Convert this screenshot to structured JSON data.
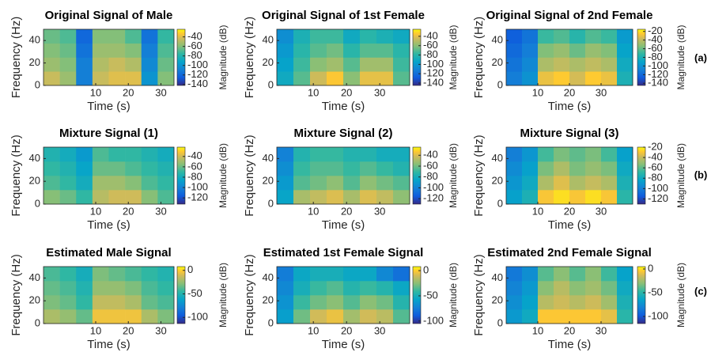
{
  "panel_labels": [
    "(a)",
    "(b)",
    "(c)"
  ],
  "chart_data": [
    {
      "type": "heatmap",
      "title": "Original Signal of Male",
      "xlabel": "Time (s)",
      "ylabel": "Frequency (Hz)",
      "colorbar_label": "Magnitude (dB)",
      "colormap": "parula",
      "xlim": [
        -6,
        34
      ],
      "xticks": [
        10,
        20,
        30
      ],
      "ylim": [
        0,
        50
      ],
      "yticks": [
        0,
        20,
        40
      ],
      "zlim": [
        -142,
        -24
      ],
      "zticks": [
        -40,
        -60,
        -80,
        -100,
        -120,
        -140
      ],
      "xbins": [
        -6,
        -1,
        4,
        9,
        14,
        19,
        24,
        29,
        34
      ],
      "ybins": [
        0,
        12.5,
        25,
        37.5,
        50
      ],
      "z": [
        [
          -45,
          -55,
          -110,
          -45,
          -40,
          -40,
          -100,
          -60
        ],
        [
          -55,
          -60,
          -110,
          -50,
          -45,
          -50,
          -105,
          -65
        ],
        [
          -60,
          -65,
          -115,
          -55,
          -55,
          -60,
          -110,
          -70
        ],
        [
          -65,
          -70,
          -120,
          -60,
          -60,
          -70,
          -115,
          -75
        ]
      ]
    },
    {
      "type": "heatmap",
      "title": "Original Signal of 1st Female",
      "xlabel": "Time (s)",
      "ylabel": "Frequency (Hz)",
      "colorbar_label": "Magnitude (dB)",
      "colormap": "parula",
      "xlim": [
        -1,
        39
      ],
      "xticks": [
        10,
        20,
        30
      ],
      "ylim": [
        0,
        50
      ],
      "yticks": [
        0,
        20,
        40
      ],
      "zlim": [
        -145,
        -25
      ],
      "zticks": [
        -40,
        -60,
        -80,
        -100,
        -120,
        -140
      ],
      "xbins": [
        -1,
        4,
        9,
        14,
        19,
        24,
        29,
        34,
        39
      ],
      "ybins": [
        0,
        12.5,
        25,
        37.5,
        50
      ],
      "z": [
        [
          -90,
          -70,
          -45,
          -35,
          -60,
          -40,
          -40,
          -70
        ],
        [
          -95,
          -75,
          -60,
          -55,
          -70,
          -55,
          -55,
          -75
        ],
        [
          -100,
          -80,
          -70,
          -65,
          -80,
          -70,
          -70,
          -80
        ],
        [
          -105,
          -85,
          -75,
          -75,
          -90,
          -80,
          -85,
          -90
        ]
      ]
    },
    {
      "type": "heatmap",
      "title": "Original Signal of 2nd Female",
      "xlabel": "Time (s)",
      "ylabel": "Frequency (Hz)",
      "colorbar_label": "Magnitude (dB)",
      "colormap": "parula",
      "xlim": [
        0,
        40
      ],
      "xticks": [
        10,
        20,
        30
      ],
      "ylim": [
        0,
        50
      ],
      "yticks": [
        0,
        20,
        40
      ],
      "zlim": [
        -145,
        -15
      ],
      "zticks": [
        -20,
        -40,
        -60,
        -80,
        -100,
        -120,
        -140
      ],
      "xbins": [
        0,
        5,
        10,
        15,
        20,
        25,
        30,
        35,
        40
      ],
      "ybins": [
        0,
        12.5,
        25,
        37.5,
        50
      ],
      "z": [
        [
          -110,
          -100,
          -30,
          -25,
          -35,
          -25,
          -30,
          -80
        ],
        [
          -115,
          -105,
          -45,
          -40,
          -45,
          -40,
          -45,
          -85
        ],
        [
          -120,
          -110,
          -55,
          -50,
          -60,
          -50,
          -55,
          -90
        ],
        [
          -125,
          -115,
          -70,
          -65,
          -75,
          -65,
          -70,
          -95
        ]
      ]
    },
    {
      "type": "heatmap",
      "title": "Mixture Signal (1)",
      "xlabel": "Time (s)",
      "ylabel": "Frequency (Hz)",
      "colorbar_label": "Magnitude (dB)",
      "colormap": "parula",
      "xlim": [
        -6,
        34
      ],
      "xticks": [
        10,
        20,
        30
      ],
      "ylim": [
        0,
        50
      ],
      "yticks": [
        0,
        20,
        40
      ],
      "zlim": [
        -132,
        -22
      ],
      "zticks": [
        -40,
        -60,
        -80,
        -100,
        -120
      ],
      "xbins": [
        -6,
        -1,
        4,
        9,
        14,
        19,
        24,
        29,
        34
      ],
      "ybins": [
        0,
        12.5,
        25,
        37.5,
        50
      ],
      "z": [
        [
          -55,
          -60,
          -70,
          -45,
          -40,
          -40,
          -55,
          -65
        ],
        [
          -65,
          -70,
          -80,
          -50,
          -50,
          -55,
          -65,
          -70
        ],
        [
          -70,
          -75,
          -85,
          -60,
          -60,
          -65,
          -70,
          -75
        ],
        [
          -75,
          -80,
          -90,
          -65,
          -70,
          -70,
          -75,
          -80
        ]
      ]
    },
    {
      "type": "heatmap",
      "title": "Mixture Signal (2)",
      "xlabel": "Time (s)",
      "ylabel": "Frequency (Hz)",
      "colorbar_label": "Magnitude (dB)",
      "colormap": "parula",
      "xlim": [
        -1,
        39
      ],
      "xticks": [
        10,
        20,
        30
      ],
      "ylim": [
        0,
        50
      ],
      "yticks": [
        0,
        20,
        40
      ],
      "zlim": [
        -130,
        -25
      ],
      "zticks": [
        -40,
        -60,
        -80,
        -100,
        -120
      ],
      "xbins": [
        -1,
        4,
        9,
        14,
        19,
        24,
        29,
        34,
        39
      ],
      "ybins": [
        0,
        12.5,
        25,
        37.5,
        50
      ],
      "z": [
        [
          -85,
          -50,
          -45,
          -40,
          -50,
          -40,
          -45,
          -55
        ],
        [
          -90,
          -65,
          -60,
          -55,
          -65,
          -55,
          -60,
          -65
        ],
        [
          -95,
          -70,
          -65,
          -65,
          -70,
          -65,
          -70,
          -75
        ],
        [
          -100,
          -75,
          -70,
          -70,
          -75,
          -75,
          -80,
          -80
        ]
      ]
    },
    {
      "type": "heatmap",
      "title": "Mixture Signal (3)",
      "xlabel": "Time (s)",
      "ylabel": "Frequency (Hz)",
      "colorbar_label": "Magnitude (dB)",
      "colormap": "parula",
      "xlim": [
        0,
        40
      ],
      "xticks": [
        10,
        20,
        30
      ],
      "ylim": [
        0,
        50
      ],
      "yticks": [
        0,
        20,
        40
      ],
      "zlim": [
        -130,
        -20
      ],
      "zticks": [
        -20,
        -40,
        -60,
        -80,
        -100,
        -120
      ],
      "xbins": [
        0,
        5,
        10,
        15,
        20,
        25,
        30,
        35,
        40
      ],
      "ybins": [
        0,
        12.5,
        25,
        37.5,
        50
      ],
      "z": [
        [
          -85,
          -75,
          -30,
          -25,
          -30,
          -25,
          -30,
          -70
        ],
        [
          -90,
          -80,
          -45,
          -35,
          -45,
          -40,
          -45,
          -75
        ],
        [
          -95,
          -85,
          -55,
          -45,
          -55,
          -50,
          -55,
          -80
        ],
        [
          -100,
          -90,
          -65,
          -55,
          -60,
          -55,
          -65,
          -85
        ]
      ]
    },
    {
      "type": "heatmap",
      "title": "Estimated Male Signal",
      "xlabel": "Time (s)",
      "ylabel": "Frequency (Hz)",
      "colorbar_label": "Magnitude (dB)",
      "colormap": "parula",
      "xlim": [
        -6,
        34
      ],
      "xticks": [
        10,
        20,
        30
      ],
      "ylim": [
        0,
        50
      ],
      "yticks": [
        0,
        20,
        40
      ],
      "zlim": [
        -113,
        8
      ],
      "zticks": [
        0,
        -50,
        -100
      ],
      "xbins": [
        -6,
        -1,
        4,
        9,
        14,
        19,
        24,
        29,
        34
      ],
      "ybins": [
        0,
        12.5,
        25,
        37.5,
        50
      ],
      "z": [
        [
          -20,
          -25,
          -35,
          -5,
          -5,
          -5,
          -20,
          -30
        ],
        [
          -30,
          -35,
          -45,
          -15,
          -15,
          -20,
          -35,
          -40
        ],
        [
          -35,
          -40,
          -50,
          -25,
          -25,
          -30,
          -40,
          -45
        ],
        [
          -40,
          -45,
          -55,
          -30,
          -35,
          -40,
          -45,
          -50
        ]
      ]
    },
    {
      "type": "heatmap",
      "title": "Estimated 1st Female Signal",
      "xlabel": "Time (s)",
      "ylabel": "Frequency (Hz)",
      "colorbar_label": "Magnitude (dB)",
      "colormap": "parula",
      "xlim": [
        -1,
        39
      ],
      "xticks": [
        10,
        20,
        30
      ],
      "ylim": [
        0,
        50
      ],
      "yticks": [
        0,
        20,
        40
      ],
      "zlim": [
        -105,
        8
      ],
      "zticks": [
        0,
        -50,
        -100
      ],
      "xbins": [
        -1,
        4,
        9,
        14,
        19,
        24,
        29,
        34,
        39
      ],
      "ybins": [
        0,
        12.5,
        25,
        37.5,
        50
      ],
      "z": [
        [
          -60,
          -30,
          -10,
          -5,
          -20,
          -10,
          -15,
          -35
        ],
        [
          -65,
          -40,
          -30,
          -25,
          -35,
          -25,
          -30,
          -45
        ],
        [
          -70,
          -50,
          -40,
          -35,
          -45,
          -40,
          -45,
          -55
        ],
        [
          -75,
          -55,
          -50,
          -50,
          -55,
          -55,
          -70,
          -80
        ]
      ]
    },
    {
      "type": "heatmap",
      "title": "Estimated 2nd Female Signal",
      "xlabel": "Time (s)",
      "ylabel": "Frequency (Hz)",
      "colorbar_label": "Magnitude (dB)",
      "colormap": "parula",
      "xlim": [
        0,
        40
      ],
      "xticks": [
        10,
        20,
        30
      ],
      "ylim": [
        0,
        50
      ],
      "yticks": [
        0,
        20,
        40
      ],
      "zlim": [
        -115,
        5
      ],
      "zticks": [
        0,
        -50,
        -100
      ],
      "xbins": [
        0,
        5,
        10,
        15,
        20,
        25,
        30,
        35,
        40
      ],
      "ybins": [
        0,
        12.5,
        25,
        37.5,
        50
      ],
      "z": [
        [
          -70,
          -60,
          -5,
          -5,
          -5,
          -5,
          -10,
          -50
        ],
        [
          -75,
          -65,
          -20,
          -15,
          -20,
          -15,
          -25,
          -55
        ],
        [
          -80,
          -70,
          -30,
          -20,
          -30,
          -25,
          -35,
          -60
        ],
        [
          -85,
          -75,
          -40,
          -30,
          -40,
          -30,
          -45,
          -65
        ]
      ]
    }
  ]
}
